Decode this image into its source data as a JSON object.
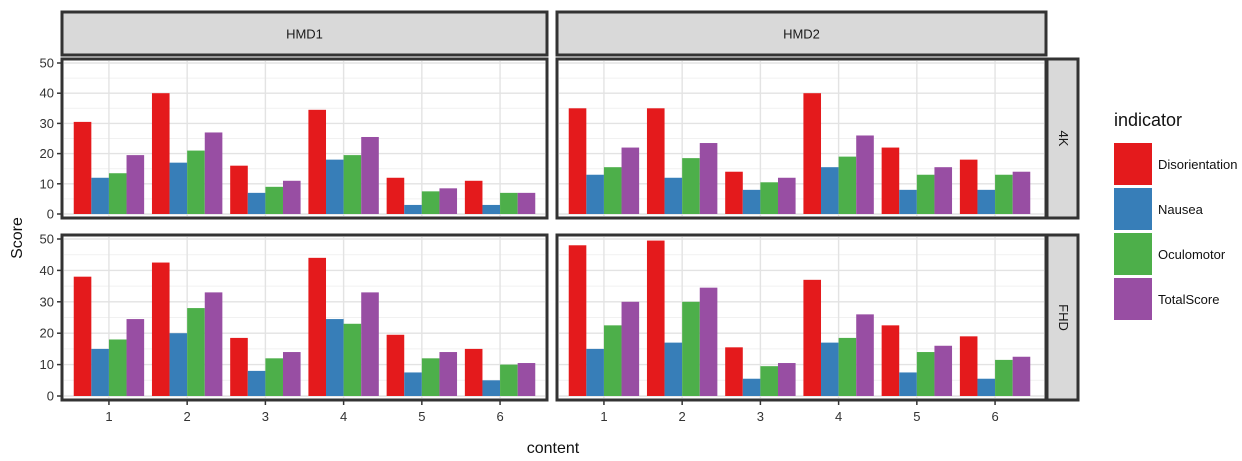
{
  "chart_data": {
    "type": "bar",
    "facet_columns": [
      "HMD1",
      "HMD2"
    ],
    "facet_rows": [
      "4K",
      "FHD"
    ],
    "categories": [
      "1",
      "2",
      "3",
      "4",
      "5",
      "6"
    ],
    "xlabel": "content",
    "ylabel": "Score",
    "ylim": [
      0,
      50
    ],
    "yticks": [
      "0",
      "10",
      "20",
      "30",
      "40",
      "50"
    ],
    "legend": {
      "title": "indicator",
      "position": "right",
      "items": [
        {
          "name": "Disorientation",
          "color": "#e41a1c"
        },
        {
          "name": "Nausea",
          "color": "#377eb8"
        },
        {
          "name": "Oculomotor",
          "color": "#4daf4a"
        },
        {
          "name": "TotalScore",
          "color": "#984ea3"
        }
      ]
    },
    "grid": true,
    "panels": [
      {
        "column": "HMD1",
        "row": "4K",
        "series": {
          "Disorientation": [
            30.5,
            40,
            16,
            34.5,
            12,
            11
          ],
          "Nausea": [
            12,
            17,
            7,
            18,
            3,
            3
          ],
          "Oculomotor": [
            13.5,
            21,
            9,
            19.5,
            7.5,
            7
          ],
          "TotalScore": [
            19.5,
            27,
            11,
            25.5,
            8.5,
            7
          ]
        }
      },
      {
        "column": "HMD2",
        "row": "4K",
        "series": {
          "Disorientation": [
            35,
            35,
            14,
            40,
            22,
            18
          ],
          "Nausea": [
            13,
            12,
            8,
            15.5,
            8,
            8
          ],
          "Oculomotor": [
            15.5,
            18.5,
            10.5,
            19,
            13,
            13
          ],
          "TotalScore": [
            22,
            23.5,
            12,
            26,
            15.5,
            14
          ]
        }
      },
      {
        "column": "HMD1",
        "row": "FHD",
        "series": {
          "Disorientation": [
            38,
            42.5,
            18.5,
            44,
            19.5,
            15
          ],
          "Nausea": [
            15,
            20,
            8,
            24.5,
            7.5,
            5
          ],
          "Oculomotor": [
            18,
            28,
            12,
            23,
            12,
            10
          ],
          "TotalScore": [
            24.5,
            33,
            14,
            33,
            14,
            10.5
          ]
        }
      },
      {
        "column": "HMD2",
        "row": "FHD",
        "series": {
          "Disorientation": [
            48,
            49.5,
            15.5,
            37,
            22.5,
            19
          ],
          "Nausea": [
            15,
            17,
            5.5,
            17,
            7.5,
            5.5
          ],
          "Oculomotor": [
            22.5,
            30,
            9.5,
            18.5,
            14,
            11.5
          ],
          "TotalScore": [
            30,
            34.5,
            10.5,
            26,
            16,
            12.5
          ]
        }
      }
    ]
  }
}
